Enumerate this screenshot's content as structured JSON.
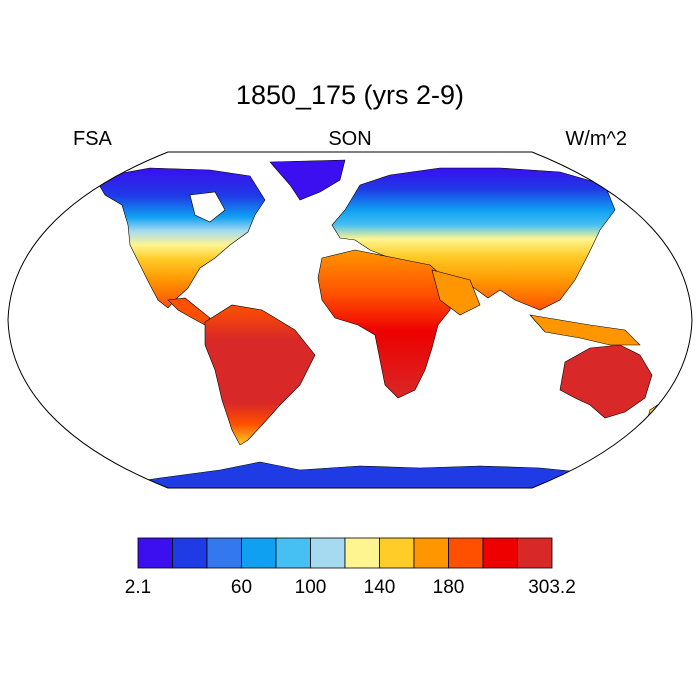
{
  "title": "1850_175 (yrs 2-9)",
  "left_label": "FSA",
  "center_label": "SON",
  "right_label": "W/m^2",
  "colorbar": {
    "colors": [
      "#3b0ff0",
      "#1f3be6",
      "#3478f0",
      "#10a0f2",
      "#46c0f2",
      "#a6daf0",
      "#fff590",
      "#ffcc28",
      "#ff9600",
      "#ff5000",
      "#ee0000",
      "#d82828"
    ],
    "tick_labels": [
      "2.1",
      "60",
      "100",
      "140",
      "180",
      "303.2"
    ]
  },
  "map": {
    "projection": "robinson",
    "ocean_color": "#ffffff",
    "outline_color": "#000000"
  }
}
